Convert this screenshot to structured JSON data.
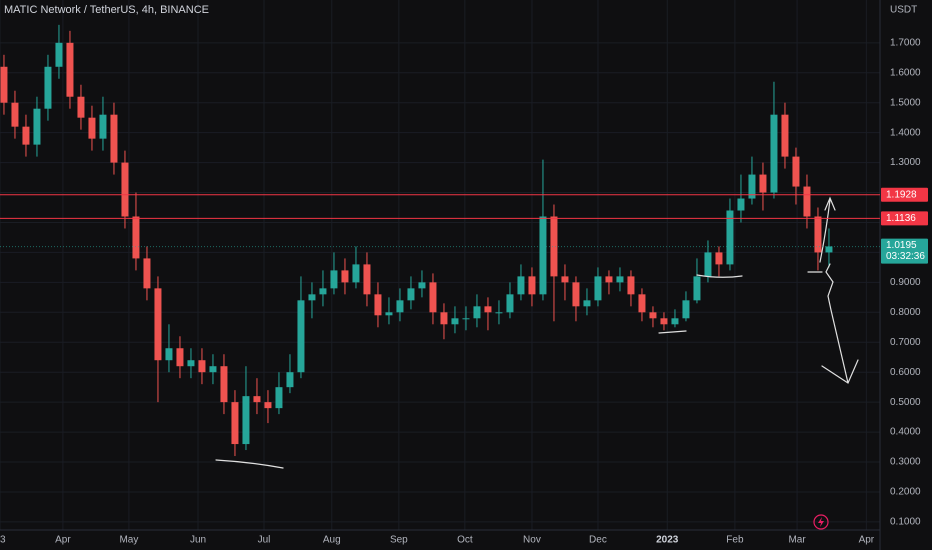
{
  "chart_data": {
    "type": "candlestick",
    "title": "MATIC Network / TetherUS, 4h, BINANCE",
    "y_axis_label": "USDT",
    "up_color": "#26a69a",
    "down_color": "#ef5350",
    "grid": true,
    "xlim": [
      -0.36,
      79.64
    ],
    "xticks": [
      {
        "value": -0.36,
        "label": "3"
      },
      {
        "value": 5.36,
        "label": "Apr"
      },
      {
        "value": 11.36,
        "label": "May"
      },
      {
        "value": 17.64,
        "label": "Jun"
      },
      {
        "value": 23.64,
        "label": "Jul"
      },
      {
        "value": 29.8,
        "label": "Aug"
      },
      {
        "value": 35.9,
        "label": "Sep"
      },
      {
        "value": 41.9,
        "label": "Oct"
      },
      {
        "value": 48,
        "label": "Nov"
      },
      {
        "value": 54,
        "label": "Dec"
      },
      {
        "value": 60.3,
        "label": "2023"
      },
      {
        "value": 66.45,
        "label": "Feb"
      },
      {
        "value": 72.1,
        "label": "Mar"
      },
      {
        "value": 78.4,
        "label": "Apr"
      }
    ],
    "ylim": [
      0.073,
      1.843
    ],
    "yticks": [
      {
        "value": 0.1,
        "label": "0.1000"
      },
      {
        "value": 0.2,
        "label": "0.2000"
      },
      {
        "value": 0.3,
        "label": "0.3000"
      },
      {
        "value": 0.4,
        "label": "0.4000"
      },
      {
        "value": 0.5,
        "label": "0.5000"
      },
      {
        "value": 0.6,
        "label": "0.6000"
      },
      {
        "value": 0.7,
        "label": "0.7000"
      },
      {
        "value": 0.8,
        "label": "0.8000"
      },
      {
        "value": 0.9,
        "label": "0.9000"
      },
      {
        "value": 1.0,
        "label": "1.0000"
      },
      {
        "value": 1.1,
        "label": "1.1000"
      },
      {
        "value": 1.2,
        "label": "1.2000"
      },
      {
        "value": 1.3,
        "label": "1.3000"
      },
      {
        "value": 1.4,
        "label": "1.4000"
      },
      {
        "value": 1.5,
        "label": "1.5000"
      },
      {
        "value": 1.6,
        "label": "1.6000"
      },
      {
        "value": 1.7,
        "label": "1.7000"
      }
    ],
    "hlines": [
      {
        "value": 1.1928,
        "label": "1.1928",
        "color": "#f23645"
      },
      {
        "value": 1.1136,
        "label": "1.1136",
        "color": "#f23645"
      }
    ],
    "last_price": {
      "value": 1.0195,
      "label": "1.0195",
      "countdown": "03:32:36",
      "color": "#26a69a"
    },
    "open": [
      1.62,
      1.5,
      1.42,
      1.36,
      1.48,
      1.62,
      1.7,
      1.52,
      1.45,
      1.38,
      1.46,
      1.3,
      1.12,
      0.98,
      0.88,
      0.64,
      0.68,
      0.62,
      0.64,
      0.6,
      0.62,
      0.5,
      0.36,
      0.52,
      0.5,
      0.48,
      0.55,
      0.6,
      0.84,
      0.86,
      0.88,
      0.94,
      0.9,
      0.96,
      0.86,
      0.79,
      0.8,
      0.84,
      0.88,
      0.9,
      0.8,
      0.76,
      0.78,
      0.78,
      0.82,
      0.8,
      0.8,
      0.86,
      0.92,
      0.86,
      1.12,
      0.92,
      0.9,
      0.82,
      0.84,
      0.92,
      0.9,
      0.92,
      0.86,
      0.8,
      0.78,
      0.76,
      0.78,
      0.84,
      0.92,
      1.0,
      0.96,
      1.14,
      1.18,
      1.26,
      1.2,
      1.46,
      1.32,
      1.22,
      1.12,
      1.0
    ],
    "high": [
      1.66,
      1.54,
      1.46,
      1.52,
      1.66,
      1.76,
      1.74,
      1.56,
      1.49,
      1.52,
      1.5,
      1.34,
      1.2,
      1.02,
      0.92,
      0.76,
      0.72,
      0.68,
      0.68,
      0.66,
      0.66,
      0.54,
      0.62,
      0.58,
      0.54,
      0.6,
      0.66,
      0.92,
      0.9,
      0.94,
      1.0,
      0.98,
      1.02,
      1.0,
      0.9,
      0.85,
      0.88,
      0.92,
      0.94,
      0.93,
      0.83,
      0.82,
      0.82,
      0.86,
      0.85,
      0.84,
      0.9,
      0.96,
      0.95,
      1.31,
      1.16,
      0.96,
      0.92,
      0.88,
      0.95,
      0.94,
      0.95,
      0.94,
      0.88,
      0.82,
      0.8,
      0.81,
      0.87,
      0.98,
      1.04,
      1.02,
      1.18,
      1.26,
      1.32,
      1.3,
      1.57,
      1.5,
      1.35,
      1.26,
      1.15,
      1.08
    ],
    "low": [
      1.46,
      1.38,
      1.32,
      1.32,
      1.44,
      1.58,
      1.48,
      1.41,
      1.34,
      1.34,
      1.26,
      1.08,
      0.94,
      0.84,
      0.5,
      0.6,
      0.58,
      0.58,
      0.56,
      0.56,
      0.46,
      0.32,
      0.34,
      0.46,
      0.43,
      0.46,
      0.53,
      0.58,
      0.78,
      0.82,
      0.86,
      0.86,
      0.88,
      0.82,
      0.75,
      0.76,
      0.77,
      0.81,
      0.85,
      0.76,
      0.71,
      0.73,
      0.74,
      0.75,
      0.74,
      0.76,
      0.78,
      0.84,
      0.82,
      0.84,
      0.77,
      0.84,
      0.77,
      0.79,
      0.82,
      0.86,
      0.87,
      0.82,
      0.77,
      0.75,
      0.74,
      0.75,
      0.77,
      0.83,
      0.9,
      0.92,
      0.94,
      1.1,
      1.16,
      1.14,
      1.18,
      1.28,
      1.16,
      1.08,
      0.94,
      0.95
    ],
    "close": [
      1.5,
      1.42,
      1.36,
      1.48,
      1.62,
      1.7,
      1.52,
      1.45,
      1.38,
      1.46,
      1.3,
      1.12,
      0.98,
      0.88,
      0.64,
      0.68,
      0.62,
      0.64,
      0.6,
      0.62,
      0.5,
      0.36,
      0.52,
      0.5,
      0.48,
      0.55,
      0.6,
      0.84,
      0.86,
      0.88,
      0.94,
      0.9,
      0.96,
      0.86,
      0.79,
      0.8,
      0.84,
      0.88,
      0.9,
      0.8,
      0.76,
      0.78,
      0.78,
      0.82,
      0.8,
      0.8,
      0.86,
      0.92,
      0.86,
      1.12,
      0.92,
      0.9,
      0.82,
      0.84,
      0.92,
      0.9,
      0.92,
      0.86,
      0.8,
      0.78,
      0.76,
      0.78,
      0.84,
      0.92,
      1.0,
      0.96,
      1.14,
      1.18,
      1.26,
      1.2,
      1.46,
      1.32,
      1.22,
      1.12,
      1.0,
      1.02
    ]
  }
}
